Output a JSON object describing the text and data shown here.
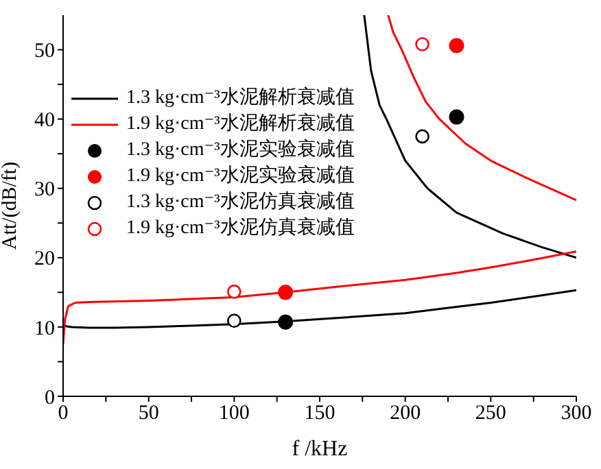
{
  "chart_data": {
    "type": "line",
    "xlabel": "f /kHz",
    "ylabel": "Att/(dB/ft)",
    "xlim": [
      0,
      300
    ],
    "ylim": [
      0,
      55
    ],
    "xticks": [
      0,
      {
        "value": 25,
        "label": null
      },
      50,
      {
        "value": 75,
        "label": null
      },
      100,
      {
        "value": 125,
        "label": null
      },
      150,
      {
        "value": 175,
        "label": null
      },
      200,
      {
        "value": 225,
        "label": null
      },
      250,
      {
        "value": 275,
        "label": null
      },
      300
    ],
    "yticks": [
      0,
      {
        "value": 5,
        "label": null
      },
      10,
      {
        "value": 15,
        "label": null
      },
      20,
      {
        "value": 25,
        "label": null
      },
      30,
      {
        "value": 35,
        "label": null
      },
      40,
      {
        "value": 45,
        "label": null
      },
      50
    ],
    "grid": false,
    "legend": "top left",
    "line_style": "solid",
    "series": [
      {
        "name": "1.3 kg·cm⁻³水泥解析衰减值",
        "color": "#000000",
        "marker": "none",
        "x": [
          0,
          2,
          5,
          15,
          30,
          50,
          75,
          100,
          130,
          160,
          200,
          230,
          250,
          275,
          300,
          null,
          176,
          180,
          185,
          189,
          200,
          213,
          230,
          257,
          280,
          300
        ],
        "values": [
          10.3,
          10.1,
          10,
          9.9,
          9.9,
          10,
          10.2,
          10.4,
          10.8,
          11.3,
          12,
          12.9,
          13.5,
          14.4,
          15.3,
          null,
          55,
          47,
          42,
          40,
          34,
          30,
          26.5,
          23.5,
          21.5,
          20
        ]
      },
      {
        "name": "1.9 kg·cm⁻³水泥解析衰减值",
        "color": "#ff0000",
        "marker": "none",
        "x": [
          0,
          1,
          3,
          7,
          15,
          50,
          100,
          130,
          160,
          200,
          230,
          250,
          275,
          300,
          null,
          190,
          193,
          198,
          205,
          212,
          220,
          235,
          250,
          271,
          300
        ],
        "values": [
          7.5,
          11,
          13,
          13.5,
          13.6,
          13.8,
          14.3,
          15,
          15.8,
          16.8,
          17.8,
          18.6,
          19.7,
          20.9,
          null,
          55,
          52.5,
          50,
          46,
          42.5,
          40,
          36.5,
          34,
          31.5,
          28.3
        ]
      },
      {
        "name": "1.3 kg·cm⁻³水泥实验衰减值",
        "type": "scatter",
        "color": "#000000",
        "marker": "circle",
        "x": [
          130,
          230
        ],
        "values": [
          10.7,
          40.3
        ]
      },
      {
        "name": "1.9 kg·cm⁻³水泥实验衰减值",
        "type": "scatter",
        "color": "#ff0000",
        "marker": "circle",
        "x": [
          130,
          230
        ],
        "values": [
          15,
          50.6
        ]
      },
      {
        "name": "1.3 kg·cm⁻³水泥仿真衰减值",
        "type": "scatter",
        "color": "#000000",
        "marker": "open_circle",
        "x": [
          100,
          210
        ],
        "values": [
          10.9,
          37.5
        ]
      },
      {
        "name": "1.9 kg·cm⁻³水泥仿真衰减值",
        "type": "scatter",
        "color": "#ff0000",
        "marker": "open_circle",
        "x": [
          100,
          210
        ],
        "values": [
          15.1,
          50.8
        ]
      }
    ]
  }
}
